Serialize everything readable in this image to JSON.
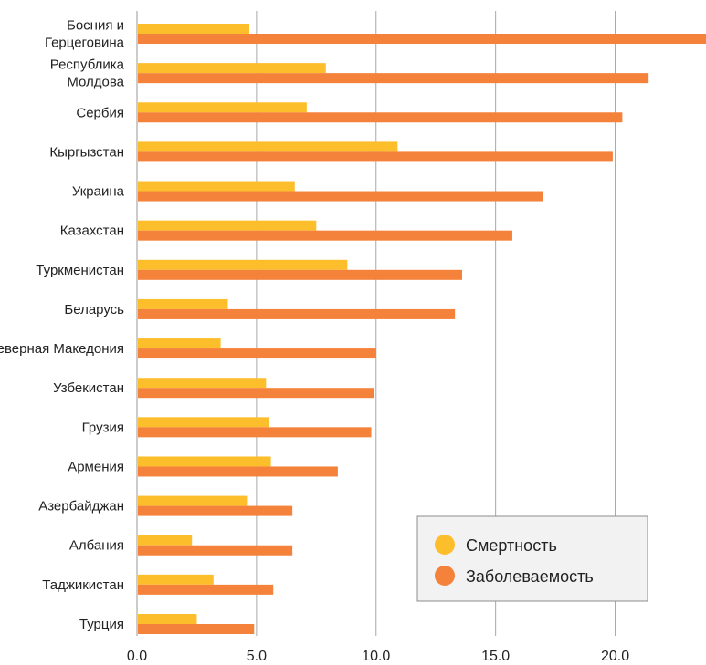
{
  "chart_data": {
    "type": "bar",
    "orientation": "horizontal",
    "categories": [
      [
        "Босния и",
        "Герцеговина"
      ],
      [
        "Республика",
        "Молдова"
      ],
      [
        "Сербия"
      ],
      [
        "Кыргызстан"
      ],
      [
        "Украина"
      ],
      [
        "Казахстан"
      ],
      [
        "Туркменистан"
      ],
      [
        "Беларусь"
      ],
      [
        "Северная Македония"
      ],
      [
        "Узбекистан"
      ],
      [
        "Грузия"
      ],
      [
        "Армения"
      ],
      [
        "Азербайджан"
      ],
      [
        "Албания"
      ],
      [
        "Таджикистан"
      ],
      [
        "Турция"
      ]
    ],
    "series": [
      {
        "name": "Смертность",
        "color": "#FDBE2C",
        "values": [
          4.7,
          7.9,
          7.1,
          10.9,
          6.6,
          7.5,
          8.8,
          3.8,
          3.5,
          5.4,
          5.5,
          5.6,
          4.6,
          2.3,
          3.2,
          2.5
        ]
      },
      {
        "name": "Заболеваемость",
        "color": "#F5823A",
        "values": [
          23.8,
          21.4,
          20.3,
          19.9,
          17.0,
          15.7,
          13.6,
          13.3,
          10.0,
          9.9,
          9.8,
          8.4,
          6.5,
          6.5,
          5.7,
          4.9
        ]
      }
    ],
    "xticks": [
      "0.0",
      "5.0",
      "10.0",
      "15.0",
      "20.0"
    ],
    "xtick_values": [
      0,
      5,
      10,
      15,
      20
    ],
    "xlim": [
      0,
      23.8
    ],
    "grid": "vertical",
    "legend_position": "bottom-right"
  }
}
